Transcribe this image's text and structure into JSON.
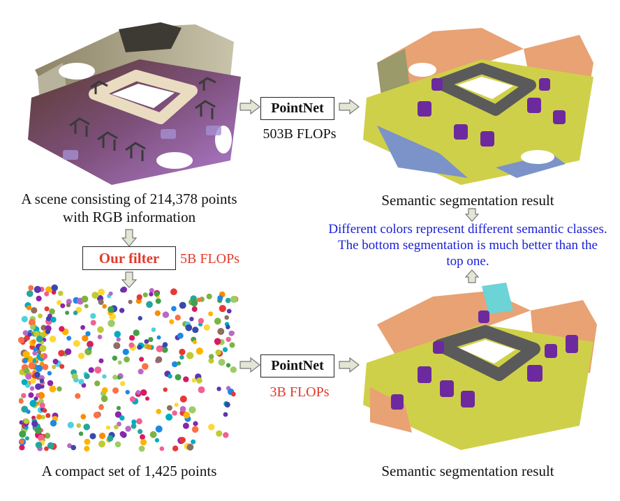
{
  "colors": {
    "red": "#e03b2c",
    "blue": "#1a20d8",
    "arrow_fill": "#e2e6d4",
    "arrow_stroke": "#777777",
    "floor_yellow": "#cfd04a",
    "wall_orange": "#e8a274",
    "chair_purple": "#6c2a9e",
    "table_gray": "#5a5a5a",
    "wall_blue": "#7b93c9",
    "wall_olive": "#9a9a6a",
    "board_cyan": "#6cd3d6"
  },
  "captions": {
    "scene": "A scene consisting of 214,378 points with RGB information",
    "seg_top": "Semantic segmentation result",
    "compact": "A compact set of 1,425 points",
    "seg_bottom": "Semantic segmentation result"
  },
  "boxes": {
    "pointnet_top": "PointNet",
    "pointnet_bottom": "PointNet",
    "filter": "Our filter"
  },
  "flops": {
    "top": "503B FLOPs",
    "filter": "5B FLOPs",
    "bottom": "3B FLOPs"
  },
  "note": "Different colors represent different semantic classes. The bottom segmentation is much better than the top one."
}
